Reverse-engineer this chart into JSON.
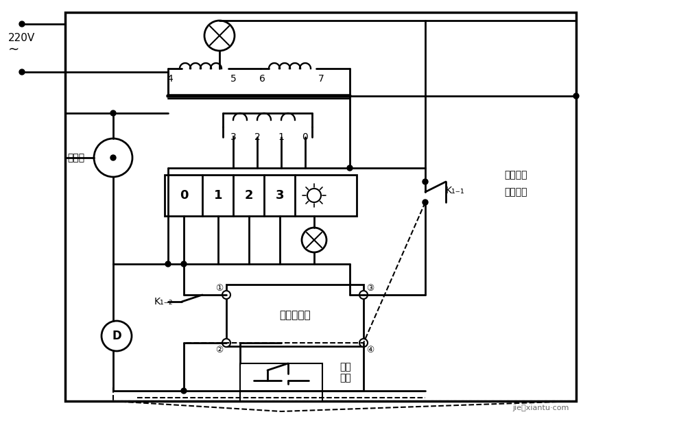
{
  "title": "",
  "bg_color": "#ffffff",
  "line_color": "#000000",
  "lw": 2.0,
  "fig_width": 10.06,
  "fig_height": 6.14,
  "text_220v": "220V\n~",
  "text_dingshiqi": "定时器",
  "text_changgui": "常规运转",
  "text_jianji": "间歇运转",
  "text_dianzi": "电子选时器",
  "text_tingzhi": "停止\n运转",
  "text_k11": "K₁₋₁",
  "text_k12": "K₁₋₂",
  "text_d": "D",
  "labels_0123": [
    "0",
    "1",
    "2",
    "3"
  ],
  "labels_3210": [
    "3",
    "2",
    "1",
    "0"
  ],
  "label_4": "4",
  "label_5": "5",
  "label_6": "6",
  "label_7": "7",
  "watermark": "jie妙xiantu·com"
}
